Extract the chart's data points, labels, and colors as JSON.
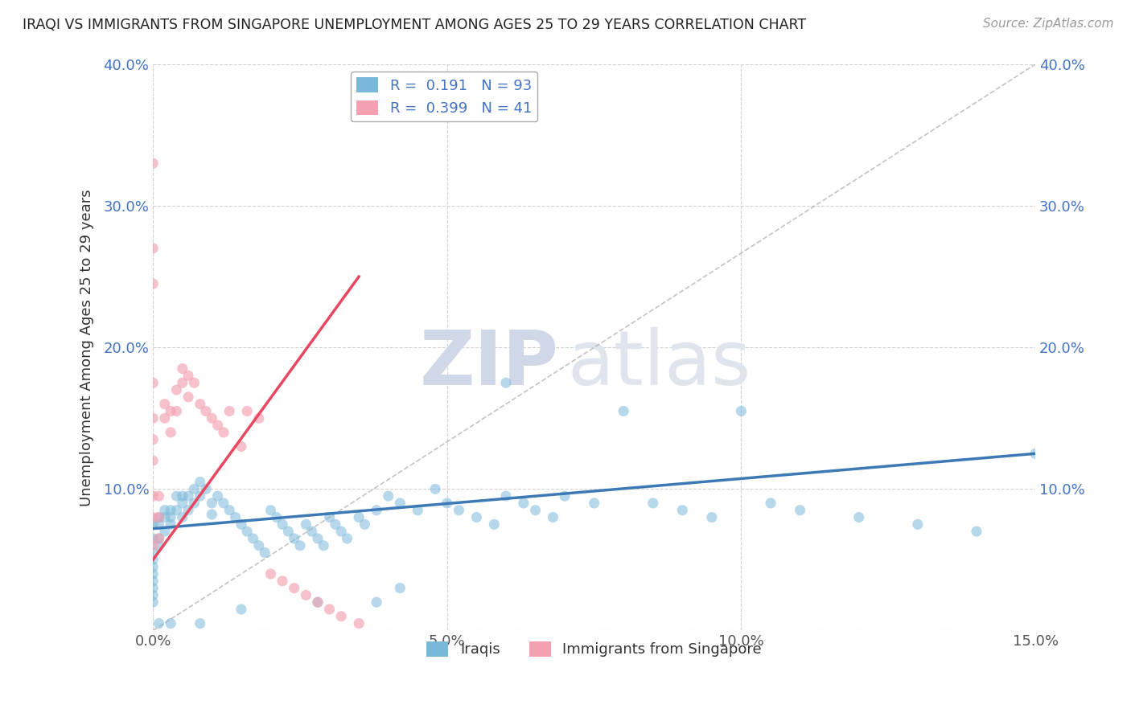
{
  "title": "IRAQI VS IMMIGRANTS FROM SINGAPORE UNEMPLOYMENT AMONG AGES 25 TO 29 YEARS CORRELATION CHART",
  "source": "Source: ZipAtlas.com",
  "ylabel": "Unemployment Among Ages 25 to 29 years",
  "xlim": [
    0.0,
    0.15
  ],
  "ylim": [
    0.0,
    0.4
  ],
  "iraqis_color": "#7ab8d9",
  "singapore_color": "#f4a0b0",
  "trendline_iraqis_color": "#3d7ab5",
  "trendline_singapore_color": "#e8475f",
  "R_iraqis": 0.191,
  "N_iraqis": 93,
  "R_singapore": 0.399,
  "N_singapore": 41,
  "legend_label_iraqis": "Iraqis",
  "legend_label_singapore": "Immigrants from Singapore",
  "watermark_zip": "ZIP",
  "watermark_atlas": "atlas",
  "background_color": "#ffffff",
  "iraq_x": [
    0.0,
    0.0,
    0.0,
    0.0,
    0.0,
    0.0,
    0.0,
    0.0,
    0.0,
    0.0,
    0.001,
    0.001,
    0.001,
    0.001,
    0.002,
    0.002,
    0.002,
    0.003,
    0.003,
    0.003,
    0.004,
    0.004,
    0.005,
    0.005,
    0.005,
    0.006,
    0.006,
    0.007,
    0.007,
    0.008,
    0.008,
    0.009,
    0.01,
    0.01,
    0.011,
    0.012,
    0.013,
    0.014,
    0.015,
    0.016,
    0.017,
    0.018,
    0.019,
    0.02,
    0.021,
    0.022,
    0.023,
    0.024,
    0.025,
    0.026,
    0.027,
    0.028,
    0.029,
    0.03,
    0.031,
    0.032,
    0.033,
    0.035,
    0.036,
    0.038,
    0.04,
    0.042,
    0.045,
    0.048,
    0.05,
    0.052,
    0.055,
    0.058,
    0.06,
    0.063,
    0.065,
    0.068,
    0.07,
    0.075,
    0.08,
    0.085,
    0.09,
    0.095,
    0.1,
    0.105,
    0.11,
    0.12,
    0.13,
    0.14,
    0.15,
    0.038,
    0.042,
    0.028,
    0.015,
    0.06,
    0.008,
    0.003,
    0.001
  ],
  "iraq_y": [
    0.075,
    0.065,
    0.055,
    0.05,
    0.045,
    0.04,
    0.035,
    0.03,
    0.025,
    0.02,
    0.08,
    0.075,
    0.065,
    0.06,
    0.085,
    0.08,
    0.07,
    0.085,
    0.08,
    0.075,
    0.095,
    0.085,
    0.095,
    0.09,
    0.08,
    0.095,
    0.085,
    0.1,
    0.09,
    0.105,
    0.095,
    0.1,
    0.09,
    0.082,
    0.095,
    0.09,
    0.085,
    0.08,
    0.075,
    0.07,
    0.065,
    0.06,
    0.055,
    0.085,
    0.08,
    0.075,
    0.07,
    0.065,
    0.06,
    0.075,
    0.07,
    0.065,
    0.06,
    0.08,
    0.075,
    0.07,
    0.065,
    0.08,
    0.075,
    0.085,
    0.095,
    0.09,
    0.085,
    0.1,
    0.09,
    0.085,
    0.08,
    0.075,
    0.095,
    0.09,
    0.085,
    0.08,
    0.095,
    0.09,
    0.155,
    0.09,
    0.085,
    0.08,
    0.155,
    0.09,
    0.085,
    0.08,
    0.075,
    0.07,
    0.125,
    0.02,
    0.03,
    0.02,
    0.015,
    0.175,
    0.005,
    0.005,
    0.005
  ],
  "sing_x": [
    0.0,
    0.0,
    0.0,
    0.0,
    0.0,
    0.0,
    0.0,
    0.0,
    0.0,
    0.0,
    0.001,
    0.001,
    0.001,
    0.002,
    0.002,
    0.003,
    0.003,
    0.004,
    0.004,
    0.005,
    0.005,
    0.006,
    0.006,
    0.007,
    0.008,
    0.009,
    0.01,
    0.011,
    0.012,
    0.013,
    0.015,
    0.016,
    0.018,
    0.02,
    0.022,
    0.024,
    0.026,
    0.028,
    0.03,
    0.032,
    0.035
  ],
  "sing_y": [
    0.33,
    0.27,
    0.245,
    0.175,
    0.15,
    0.135,
    0.12,
    0.095,
    0.08,
    0.06,
    0.095,
    0.08,
    0.065,
    0.16,
    0.15,
    0.155,
    0.14,
    0.17,
    0.155,
    0.185,
    0.175,
    0.18,
    0.165,
    0.175,
    0.16,
    0.155,
    0.15,
    0.145,
    0.14,
    0.155,
    0.13,
    0.155,
    0.15,
    0.04,
    0.035,
    0.03,
    0.025,
    0.02,
    0.015,
    0.01,
    0.005
  ]
}
